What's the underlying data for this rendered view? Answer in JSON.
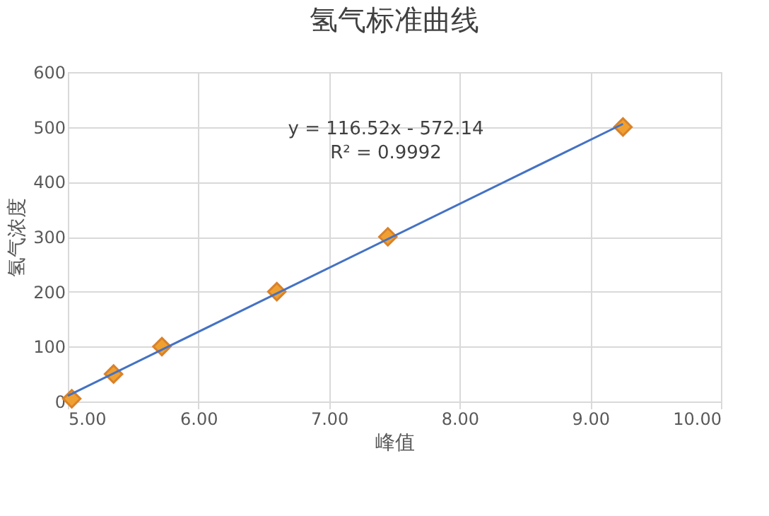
{
  "chart_data": {
    "type": "scatter",
    "title": "氢气标准曲线",
    "xlabel": "峰值",
    "ylabel": "氢气浓度",
    "x": [
      5.03,
      5.35,
      5.72,
      6.6,
      7.45,
      9.25
    ],
    "series": [
      {
        "color": "#f0a030",
        "values": [
          5,
          50,
          100,
          200,
          300,
          500
        ],
        "marker": "diamond"
      },
      {
        "type": "line",
        "color": "#4472c4",
        "x": [
          5.0,
          9.25
        ],
        "values": [
          10.46,
          505.67
        ],
        "marker": "none"
      }
    ],
    "annotations": [
      "y = 116.52x - 572.14",
      "R² = 0.9992"
    ],
    "xlim": [
      5,
      10
    ],
    "xticks": [
      {
        "value": 5,
        "label": "5.00"
      },
      {
        "value": 6,
        "label": "6.00"
      },
      {
        "value": 7,
        "label": "7.00"
      },
      {
        "value": 8,
        "label": "8.00"
      },
      {
        "value": 9,
        "label": "9.00"
      },
      {
        "value": 10,
        "label": "10.00"
      }
    ],
    "ylim": [
      0,
      600
    ],
    "yticks": [
      0,
      100,
      200,
      300,
      400,
      500,
      600
    ],
    "grid": true
  }
}
